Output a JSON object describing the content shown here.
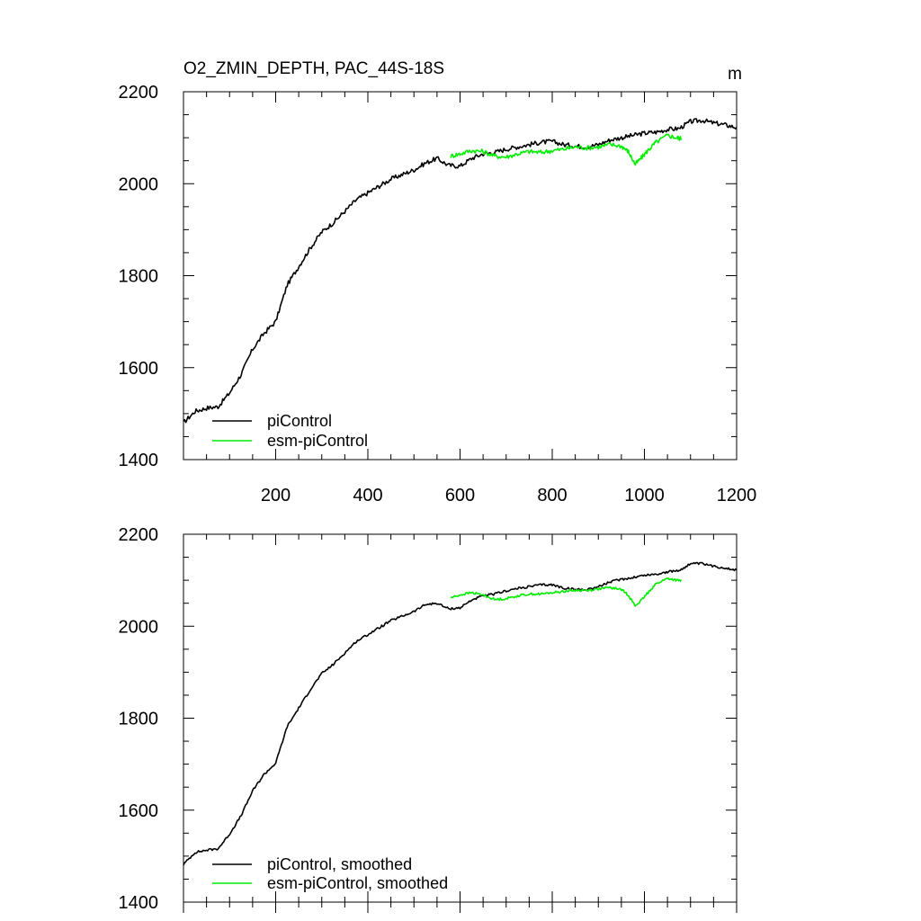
{
  "chart_data": [
    {
      "type": "line",
      "title": "O2_ZMIN_DEPTH, PAC_44S-18S",
      "units": "m",
      "xlim": [
        0,
        1200
      ],
      "ylim": [
        1400,
        2200
      ],
      "xticks": [
        200,
        400,
        600,
        800,
        1000,
        1200
      ],
      "yticks": [
        1400,
        1600,
        1800,
        2000,
        2200
      ],
      "legend_position": "bottom-left",
      "series": [
        {
          "name": "piControl",
          "color": "#000000",
          "x": [
            0,
            25,
            50,
            75,
            100,
            125,
            150,
            175,
            200,
            225,
            250,
            275,
            300,
            325,
            350,
            375,
            400,
            425,
            450,
            475,
            500,
            525,
            550,
            575,
            600,
            625,
            650,
            675,
            700,
            725,
            750,
            775,
            800,
            825,
            850,
            875,
            900,
            925,
            950,
            975,
            1000,
            1025,
            1050,
            1075,
            1100,
            1125,
            1150,
            1175,
            1200
          ],
          "y": [
            1480,
            1505,
            1512,
            1515,
            1545,
            1585,
            1640,
            1675,
            1700,
            1780,
            1820,
            1860,
            1895,
            1915,
            1940,
            1965,
            1980,
            1995,
            2010,
            2020,
            2030,
            2045,
            2055,
            2040,
            2038,
            2055,
            2065,
            2068,
            2075,
            2080,
            2085,
            2090,
            2092,
            2085,
            2082,
            2080,
            2085,
            2095,
            2100,
            2105,
            2110,
            2112,
            2118,
            2120,
            2135,
            2138,
            2132,
            2128,
            2122
          ]
        },
        {
          "name": "esm-piControl",
          "color": "#00ee00",
          "x": [
            580,
            600,
            625,
            650,
            675,
            700,
            725,
            750,
            775,
            800,
            825,
            850,
            875,
            900,
            925,
            950,
            965,
            980,
            995,
            1010,
            1025,
            1050,
            1070,
            1080
          ],
          "y": [
            2060,
            2065,
            2072,
            2070,
            2060,
            2058,
            2065,
            2070,
            2068,
            2072,
            2075,
            2080,
            2078,
            2080,
            2085,
            2082,
            2070,
            2042,
            2058,
            2075,
            2090,
            2105,
            2100,
            2098
          ]
        }
      ]
    },
    {
      "type": "line",
      "title": "",
      "xlim": [
        0,
        1200
      ],
      "ylim": [
        1400,
        2200
      ],
      "yticks": [
        1400,
        1600,
        1800,
        2000,
        2200
      ],
      "legend_position": "bottom-left",
      "series": [
        {
          "name": "piControl, smoothed",
          "color": "#000000",
          "x": [
            0,
            25,
            50,
            75,
            100,
            125,
            150,
            175,
            200,
            225,
            250,
            275,
            300,
            325,
            350,
            375,
            400,
            425,
            450,
            475,
            500,
            525,
            550,
            575,
            600,
            625,
            650,
            675,
            700,
            725,
            750,
            775,
            800,
            825,
            850,
            875,
            900,
            925,
            950,
            975,
            1000,
            1025,
            1050,
            1075,
            1100,
            1125,
            1150,
            1175,
            1200
          ],
          "y": [
            1482,
            1508,
            1513,
            1516,
            1548,
            1588,
            1642,
            1678,
            1702,
            1782,
            1822,
            1862,
            1897,
            1917,
            1942,
            1967,
            1982,
            1997,
            2012,
            2022,
            2032,
            2047,
            2050,
            2038,
            2040,
            2057,
            2066,
            2070,
            2077,
            2082,
            2086,
            2090,
            2090,
            2083,
            2080,
            2080,
            2086,
            2096,
            2102,
            2106,
            2111,
            2113,
            2118,
            2121,
            2136,
            2136,
            2130,
            2127,
            2122
          ]
        },
        {
          "name": "esm-piControl, smoothed",
          "color": "#00ee00",
          "x": [
            580,
            600,
            625,
            650,
            675,
            700,
            725,
            750,
            775,
            800,
            825,
            850,
            875,
            900,
            925,
            950,
            965,
            980,
            995,
            1010,
            1025,
            1050,
            1070,
            1080
          ],
          "y": [
            2062,
            2068,
            2073,
            2068,
            2058,
            2060,
            2066,
            2070,
            2070,
            2073,
            2076,
            2078,
            2078,
            2081,
            2084,
            2080,
            2068,
            2044,
            2058,
            2076,
            2092,
            2104,
            2100,
            2099
          ]
        }
      ]
    }
  ]
}
